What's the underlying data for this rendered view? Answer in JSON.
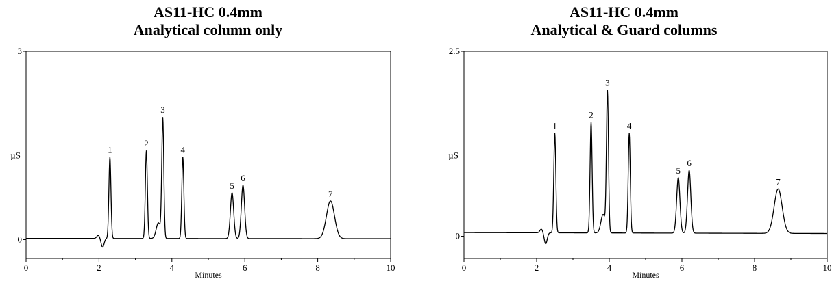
{
  "chart_data": [
    {
      "type": "line",
      "title": "AS11-HC 0.4mm",
      "subtitle": "Analytical column only",
      "xlabel": "Minutes",
      "ylabel": "µS",
      "xlim": [
        0,
        10
      ],
      "ylim": [
        -0.3,
        3
      ],
      "xticks": [
        "0",
        "2",
        "4",
        "6",
        "8",
        "10"
      ],
      "yticks": [
        "0",
        "3"
      ],
      "baseline": 0.02,
      "dip": {
        "x": 2.1,
        "y": -0.12
      },
      "peaks": [
        {
          "label": "1",
          "x": 2.3,
          "y": 1.3
        },
        {
          "label": "2",
          "x": 3.3,
          "y": 1.4
        },
        {
          "label": "3",
          "x": 3.75,
          "y": 1.9
        },
        {
          "label": "4",
          "x": 4.3,
          "y": 1.3
        },
        {
          "label": "5",
          "x": 5.65,
          "y": 0.73
        },
        {
          "label": "6",
          "x": 5.95,
          "y": 0.85
        },
        {
          "label": "7",
          "x": 8.35,
          "y": 0.6
        }
      ]
    },
    {
      "type": "line",
      "title": "AS11-HC 0.4mm",
      "subtitle": "Analytical & Guard columns",
      "xlabel": "Minutes",
      "ylabel": "µS",
      "xlim": [
        0,
        10
      ],
      "ylim": [
        -0.3,
        2.5
      ],
      "xticks": [
        "0",
        "2",
        "4",
        "6",
        "8",
        "10"
      ],
      "yticks": [
        "0",
        "2.5"
      ],
      "baseline": 0.05,
      "dip": {
        "x": 2.25,
        "y": -0.1
      },
      "peaks": [
        {
          "label": "1",
          "x": 2.5,
          "y": 1.35
        },
        {
          "label": "2",
          "x": 3.5,
          "y": 1.5
        },
        {
          "label": "3",
          "x": 3.95,
          "y": 1.9
        },
        {
          "label": "4",
          "x": 4.55,
          "y": 1.35
        },
        {
          "label": "5",
          "x": 5.9,
          "y": 0.75
        },
        {
          "label": "6",
          "x": 6.2,
          "y": 0.85
        },
        {
          "label": "7",
          "x": 8.65,
          "y": 0.6
        }
      ]
    }
  ]
}
